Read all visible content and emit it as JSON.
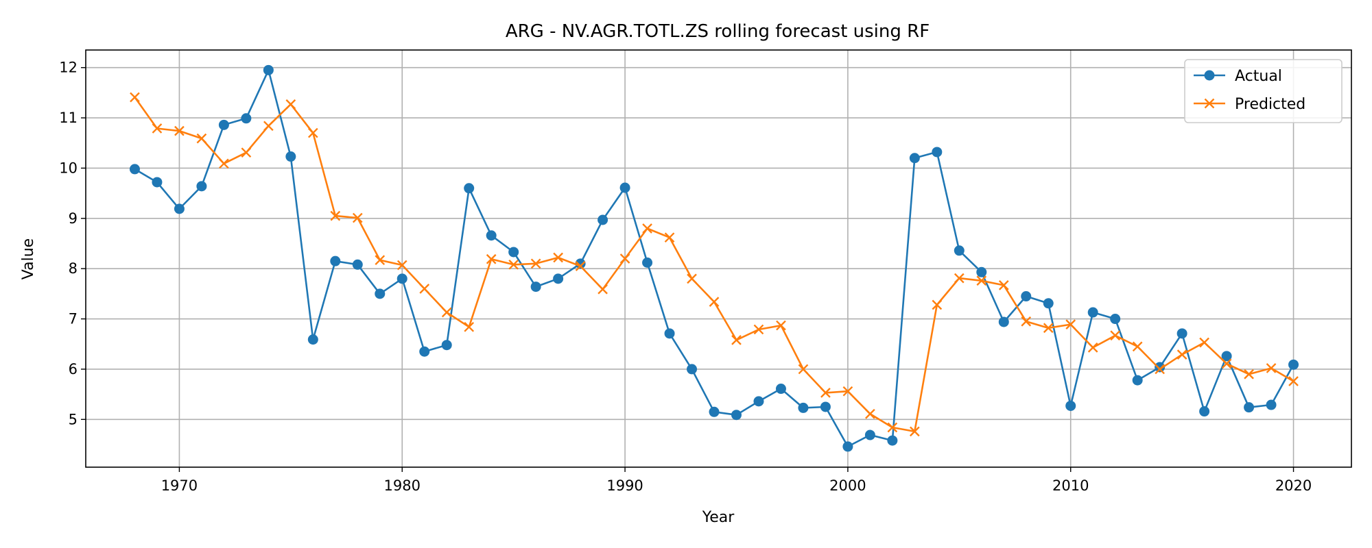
{
  "chart_data": {
    "type": "line",
    "title": "ARG - NV.AGR.TOTL.ZS rolling forecast using RF",
    "xlabel": "Year",
    "ylabel": "Value",
    "xlim": [
      1965.8,
      2022.6
    ],
    "ylim": [
      4.05,
      12.35
    ],
    "xticks": [
      1970,
      1980,
      1990,
      2000,
      2010,
      2020
    ],
    "yticks": [
      5,
      6,
      7,
      8,
      9,
      10,
      11,
      12
    ],
    "grid": true,
    "legend_position": "top-right",
    "x": [
      1968,
      1969,
      1970,
      1971,
      1972,
      1973,
      1974,
      1975,
      1976,
      1977,
      1978,
      1979,
      1980,
      1981,
      1982,
      1983,
      1984,
      1985,
      1986,
      1987,
      1988,
      1989,
      1990,
      1991,
      1992,
      1993,
      1994,
      1995,
      1996,
      1997,
      1998,
      1999,
      2000,
      2001,
      2002,
      2003,
      2004,
      2005,
      2006,
      2007,
      2008,
      2009,
      2010,
      2011,
      2012,
      2013,
      2014,
      2015,
      2016,
      2017,
      2018,
      2019,
      2020
    ],
    "series": [
      {
        "name": "Actual",
        "color": "#1f77b4",
        "marker": "circle",
        "values": [
          9.98,
          9.72,
          9.19,
          9.64,
          10.86,
          10.99,
          11.95,
          10.23,
          6.59,
          8.15,
          8.08,
          7.5,
          7.8,
          6.35,
          6.48,
          9.6,
          8.66,
          8.33,
          7.64,
          7.8,
          8.1,
          8.97,
          9.61,
          8.12,
          6.71,
          6.0,
          5.15,
          5.09,
          5.36,
          5.61,
          5.23,
          5.25,
          4.46,
          4.69,
          4.58,
          10.2,
          10.32,
          8.36,
          7.93,
          6.94,
          7.45,
          7.31,
          5.27,
          7.13,
          7.0,
          5.78,
          6.04,
          6.71,
          5.16,
          6.26,
          5.24,
          5.29,
          6.09
        ]
      },
      {
        "name": "Predicted",
        "color": "#ff7f0e",
        "marker": "x",
        "values": [
          11.41,
          10.79,
          10.74,
          10.59,
          10.09,
          10.31,
          10.84,
          11.27,
          10.7,
          9.05,
          9.01,
          8.17,
          8.07,
          7.6,
          7.13,
          6.84,
          8.19,
          8.08,
          8.1,
          8.22,
          8.05,
          7.59,
          8.2,
          8.8,
          8.62,
          7.8,
          7.34,
          6.58,
          6.79,
          6.87,
          6.0,
          5.53,
          5.56,
          5.11,
          4.84,
          4.76,
          7.28,
          7.81,
          7.76,
          7.67,
          6.95,
          6.82,
          6.89,
          6.43,
          6.67,
          6.45,
          6.0,
          6.29,
          6.53,
          6.11,
          5.9,
          6.02,
          5.76
        ]
      }
    ]
  }
}
